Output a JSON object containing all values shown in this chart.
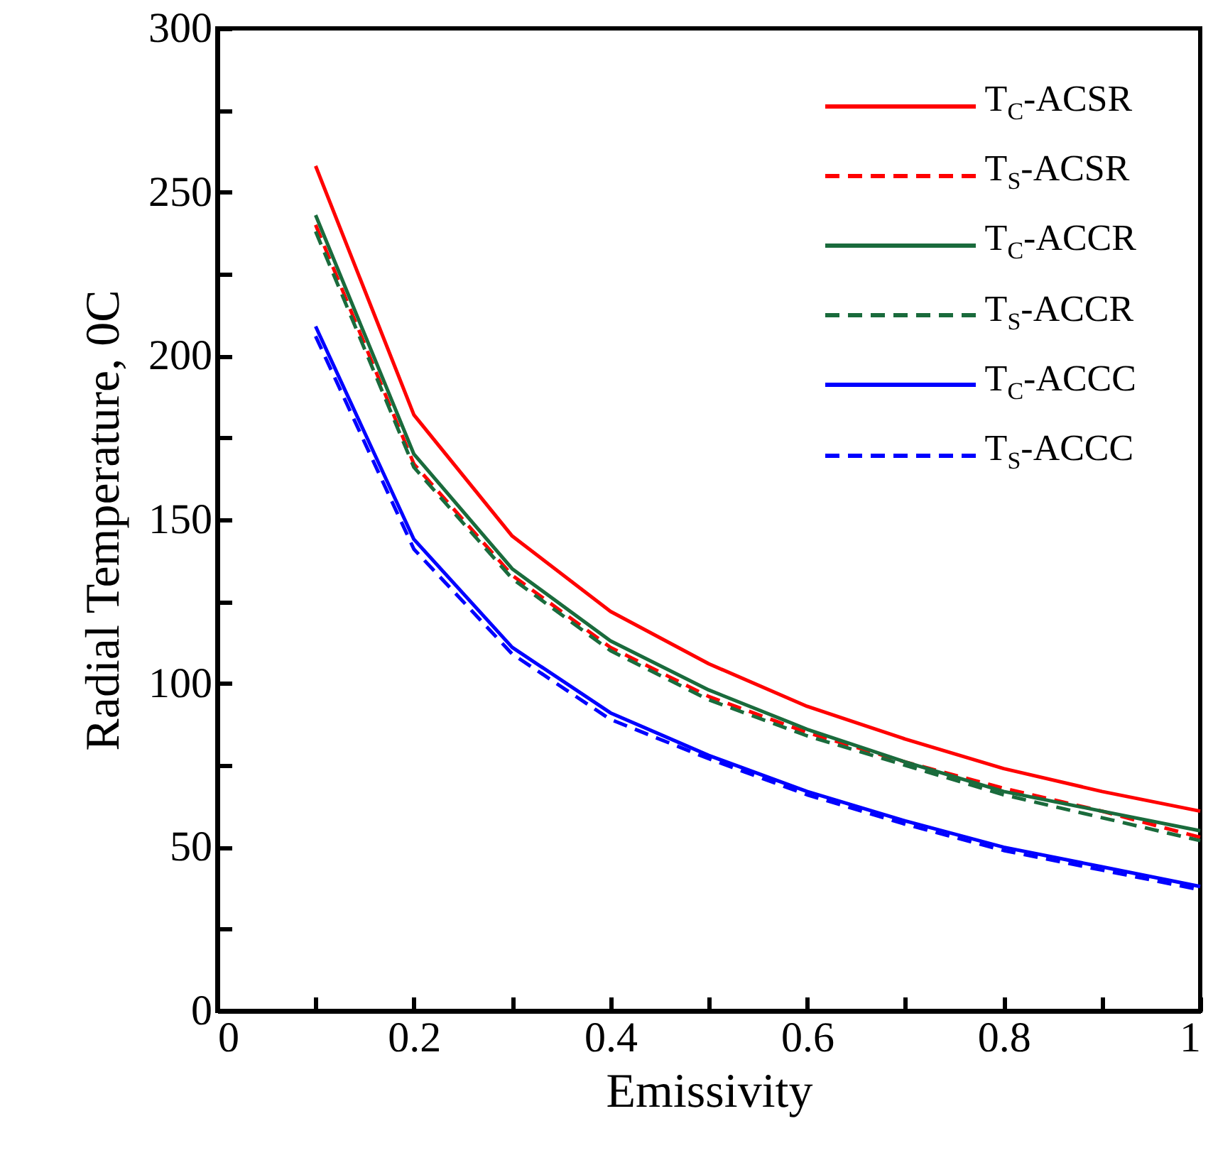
{
  "chart_data": {
    "type": "line",
    "xlabel": "Emissivity",
    "ylabel": "Radial Temperature, 0C",
    "x": [
      0.1,
      0.2,
      0.3,
      0.4,
      0.5,
      0.6,
      0.7,
      0.8,
      0.9,
      1.0
    ],
    "series": [
      {
        "name": "T$_{C}$-ACSR",
        "color": "#ff0000",
        "line_style": "solid",
        "values": [
          258,
          182,
          145,
          122,
          106,
          93,
          83,
          74,
          67,
          61
        ]
      },
      {
        "name": "T$_{S}$-ACSR",
        "color": "#ff0000",
        "line_style": "dashed",
        "values": [
          240,
          167,
          133,
          111,
          96,
          85,
          76,
          68,
          61,
          53
        ]
      },
      {
        "name": "T$_{C}$-ACCR",
        "color": "#1a6b3c",
        "line_style": "solid",
        "values": [
          243,
          170,
          135,
          113,
          98,
          86,
          76,
          67,
          61,
          55
        ]
      },
      {
        "name": "T$_{S}$-ACCR",
        "color": "#1a6b3c",
        "line_style": "dashed",
        "values": [
          238,
          166,
          132,
          110,
          95,
          84,
          75,
          66,
          59,
          52
        ]
      },
      {
        "name": "T$_{C}$-ACCC",
        "color": "#0000ff",
        "line_style": "solid",
        "values": [
          209,
          144,
          111,
          91,
          78,
          67,
          58,
          50,
          44,
          38
        ]
      },
      {
        "name": "T$_{S}$-ACCC",
        "color": "#0000ff",
        "line_style": "dashed",
        "values": [
          206,
          141,
          109,
          89,
          77,
          66,
          57,
          49,
          43,
          37
        ]
      }
    ],
    "xlim": [
      0,
      1
    ],
    "ylim": [
      0,
      300
    ],
    "xticks": [
      0,
      {
        "value": 0.1,
        "label": null
      },
      0.2,
      {
        "value": 0.3,
        "label": null
      },
      0.4,
      {
        "value": 0.5,
        "label": null
      },
      0.6,
      {
        "value": 0.7,
        "label": null
      },
      0.8,
      {
        "value": 0.9,
        "label": null
      },
      1
    ],
    "yticks": [
      0,
      {
        "value": 25,
        "label": null
      },
      50,
      {
        "value": 75,
        "label": null
      },
      100,
      {
        "value": 125,
        "label": null
      },
      150,
      {
        "value": 175,
        "label": null
      },
      200,
      {
        "value": 225,
        "label": null
      },
      250,
      {
        "value": 275,
        "label": null
      },
      300
    ],
    "grid": false,
    "legend": "top right",
    "marker": "none"
  }
}
